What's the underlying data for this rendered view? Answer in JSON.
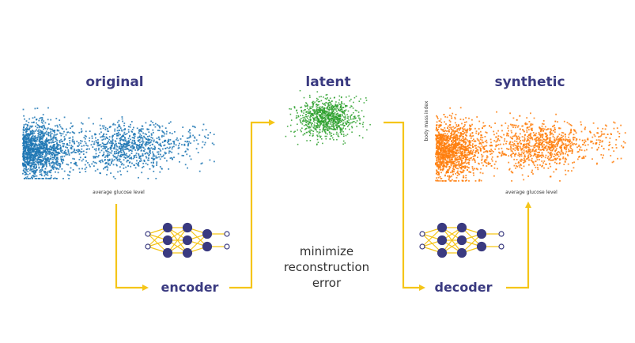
{
  "titles": {
    "original": "original",
    "latent": "latent",
    "synthetic": "synthetic"
  },
  "axes": {
    "original_x": "average glucose level",
    "synthetic_x": "average glucose level",
    "synthetic_y": "body mass index"
  },
  "labels": {
    "encoder": "encoder",
    "decoder": "decoder"
  },
  "caption": {
    "line1": "minimize",
    "line2": "reconstruction",
    "line3": "error"
  },
  "colors": {
    "original": "#1f77b4",
    "latent": "#2ca02c",
    "synthetic": "#ff7f0e",
    "arrow": "#f5c518",
    "network_node": "#3a3a80",
    "network_edge": "#f5c518",
    "title": "#3a3a80"
  },
  "icons": {
    "encoder": "neural-network-icon",
    "decoder": "neural-network-icon"
  }
}
